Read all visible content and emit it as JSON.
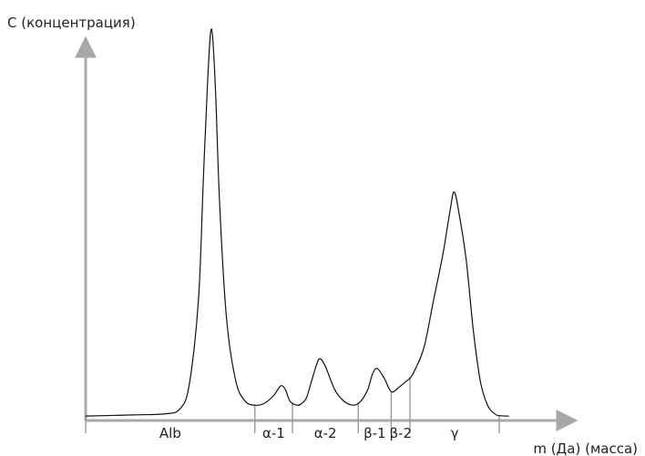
{
  "chart_data": {
    "type": "line",
    "title": "",
    "ylabel": "C (концентрация)",
    "xlabel": "m (Да) (масса)",
    "grid": false,
    "legend": "none",
    "xlim": [
      0,
      100
    ],
    "ylim": [
      0,
      100
    ],
    "fractions": [
      {
        "label": "Alb",
        "start": 0,
        "end": 36
      },
      {
        "label": "α-1",
        "start": 36,
        "end": 44
      },
      {
        "label": "α-2",
        "start": 44,
        "end": 58
      },
      {
        "label": "β-1",
        "start": 58,
        "end": 65
      },
      {
        "label": "β-2",
        "start": 65,
        "end": 69
      },
      {
        "label": "γ",
        "start": 69,
        "end": 88
      }
    ],
    "series": [
      {
        "values": [
          [
            0,
            0.2
          ],
          [
            10,
            0.5
          ],
          [
            17,
            0.8
          ],
          [
            20,
            2
          ],
          [
            22,
            8
          ],
          [
            24,
            30
          ],
          [
            25,
            60
          ],
          [
            26,
            88
          ],
          [
            26.8,
            100
          ],
          [
            27.6,
            85
          ],
          [
            28.5,
            55
          ],
          [
            30,
            25
          ],
          [
            32,
            9
          ],
          [
            34,
            4
          ],
          [
            36,
            3
          ],
          [
            38,
            3.5
          ],
          [
            40,
            5.5
          ],
          [
            41.5,
            8
          ],
          [
            42.5,
            7
          ],
          [
            43.5,
            4
          ],
          [
            45,
            3
          ],
          [
            46,
            3.5
          ],
          [
            47,
            5
          ],
          [
            48,
            9
          ],
          [
            49,
            13
          ],
          [
            49.8,
            15
          ],
          [
            51,
            13
          ],
          [
            53,
            7
          ],
          [
            55,
            4
          ],
          [
            57,
            3
          ],
          [
            58.5,
            4
          ],
          [
            60,
            7
          ],
          [
            61,
            11
          ],
          [
            62,
            12.5
          ],
          [
            63.5,
            10
          ],
          [
            65,
            6.5
          ],
          [
            66.5,
            7.5
          ],
          [
            68,
            9
          ],
          [
            69,
            10
          ],
          [
            70,
            12
          ],
          [
            72,
            18
          ],
          [
            74,
            30
          ],
          [
            76,
            42
          ],
          [
            77.5,
            53
          ],
          [
            78.4,
            58
          ],
          [
            79.5,
            52
          ],
          [
            81,
            40
          ],
          [
            82.5,
            22
          ],
          [
            84,
            9
          ],
          [
            85.5,
            3
          ],
          [
            87,
            0.8
          ],
          [
            88,
            0.3
          ],
          [
            90,
            0.2
          ]
        ]
      }
    ]
  }
}
